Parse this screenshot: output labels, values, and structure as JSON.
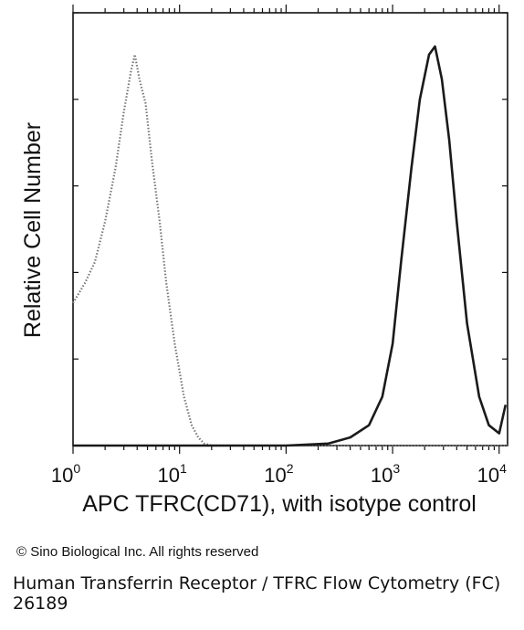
{
  "chart_data": {
    "type": "line",
    "title": "",
    "xlabel": "APC TFRC(CD71), with isotype control",
    "ylabel": "Relative Cell Number",
    "xscale": "log",
    "xlim": [
      1,
      12000
    ],
    "ylim": [
      0,
      100
    ],
    "x_ticks": [
      {
        "value": 1,
        "base": "10",
        "exp": "0"
      },
      {
        "value": 10,
        "base": "10",
        "exp": "1"
      },
      {
        "value": 100,
        "base": "10",
        "exp": "2"
      },
      {
        "value": 1000,
        "base": "10",
        "exp": "3"
      },
      {
        "value": 10000,
        "base": "10",
        "exp": "4"
      }
    ],
    "grid": false,
    "legend": "none",
    "series": [
      {
        "style": "dotted",
        "color": "#777777",
        "x": [
          1.0,
          1.3,
          1.6,
          2.0,
          2.5,
          3.0,
          3.5,
          3.8,
          4.2,
          4.8,
          5.5,
          6.5,
          7.5,
          9.0,
          11,
          13,
          15,
          17,
          20,
          40,
          100,
          1000,
          12000
        ],
        "y": [
          35,
          40,
          45,
          55,
          68,
          82,
          92,
          96,
          90,
          84,
          70,
          55,
          40,
          25,
          12,
          5,
          2,
          0.5,
          0,
          0,
          0,
          0,
          0
        ]
      },
      {
        "style": "solid",
        "color": "#1a1a1a",
        "x": [
          1,
          100,
          250,
          400,
          600,
          800,
          1000,
          1200,
          1500,
          1800,
          2200,
          2500,
          2900,
          3400,
          4000,
          5000,
          6500,
          8000,
          10000,
          11500
        ],
        "y": [
          0,
          0,
          0.5,
          2,
          5,
          12,
          25,
          45,
          68,
          85,
          96,
          98,
          90,
          75,
          55,
          30,
          12,
          5,
          3,
          10
        ]
      }
    ]
  },
  "copyright": "© Sino Biological Inc. All rights reserved",
  "caption": "Human Transferrin Receptor / TFRC Flow Cytometry (FC) 26189"
}
